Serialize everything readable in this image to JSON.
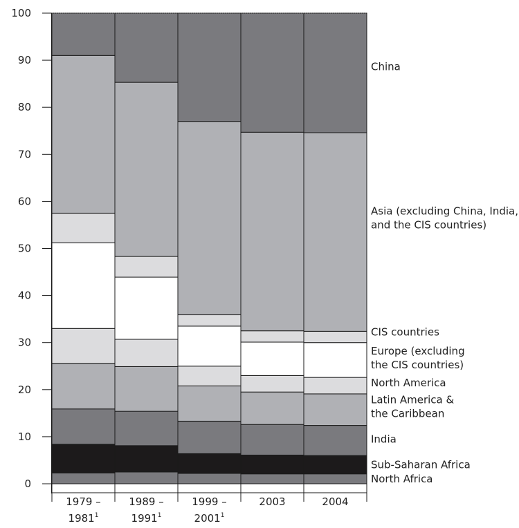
{
  "chart_data": {
    "type": "bar",
    "stacked": true,
    "ylim": [
      0,
      100
    ],
    "yticks": [
      0,
      10,
      20,
      30,
      40,
      50,
      60,
      70,
      80,
      90,
      100
    ],
    "categories": [
      {
        "lines": [
          "1979 –",
          "1981"
        ],
        "footnote": "1"
      },
      {
        "lines": [
          "1989 –",
          "1991"
        ],
        "footnote": "1"
      },
      {
        "lines": [
          "1999 –",
          "2001"
        ],
        "footnote": "1"
      },
      {
        "lines": [
          "2003"
        ],
        "footnote": ""
      },
      {
        "lines": [
          "2004"
        ],
        "footnote": ""
      }
    ],
    "series": [
      {
        "name": "North Africa",
        "legend_lines": [
          "North Africa"
        ],
        "color": "#7a7a7e",
        "values": [
          2.3,
          2.5,
          2.2,
          2.1,
          2.1
        ]
      },
      {
        "name": "Sub-Saharan Africa",
        "legend_lines": [
          "Sub-Saharan Africa"
        ],
        "color": "#1c1a1b",
        "values": [
          6.1,
          5.6,
          4.2,
          4.0,
          3.9
        ]
      },
      {
        "name": "India",
        "legend_lines": [
          "India"
        ],
        "color": "#7a7a7e",
        "values": [
          7.5,
          7.3,
          6.9,
          6.5,
          6.4
        ]
      },
      {
        "name": "Latin America & the Caribbean",
        "legend_lines": [
          "Latin America &",
          "the Caribbean"
        ],
        "color": "#b0b1b5",
        "values": [
          9.7,
          9.5,
          7.5,
          6.9,
          6.7
        ]
      },
      {
        "name": "North America",
        "legend_lines": [
          "North America"
        ],
        "color": "#dcdcde",
        "values": [
          7.4,
          5.8,
          4.2,
          3.5,
          3.5
        ]
      },
      {
        "name": "Europe (excluding the CIS countries)",
        "legend_lines": [
          "Europe (excluding",
          "the CIS countries)"
        ],
        "color": "#ffffff",
        "values": [
          18.2,
          13.2,
          8.5,
          7.1,
          7.4
        ]
      },
      {
        "name": "CIS countries",
        "legend_lines": [
          "CIS countries"
        ],
        "color": "#dcdcde",
        "values": [
          6.3,
          4.4,
          2.4,
          2.4,
          2.4
        ]
      },
      {
        "name": "Asia (excluding China, India, and the CIS countries)",
        "legend_lines": [
          "Asia (excluding China, India,",
          "and the CIS countries)"
        ],
        "color": "#b0b1b5",
        "values": [
          33.5,
          37.0,
          41.1,
          42.2,
          42.2
        ]
      },
      {
        "name": "China",
        "legend_lines": [
          "China"
        ],
        "color": "#7a7a7e",
        "values": [
          9.0,
          14.7,
          23.0,
          25.3,
          25.4
        ]
      }
    ]
  }
}
